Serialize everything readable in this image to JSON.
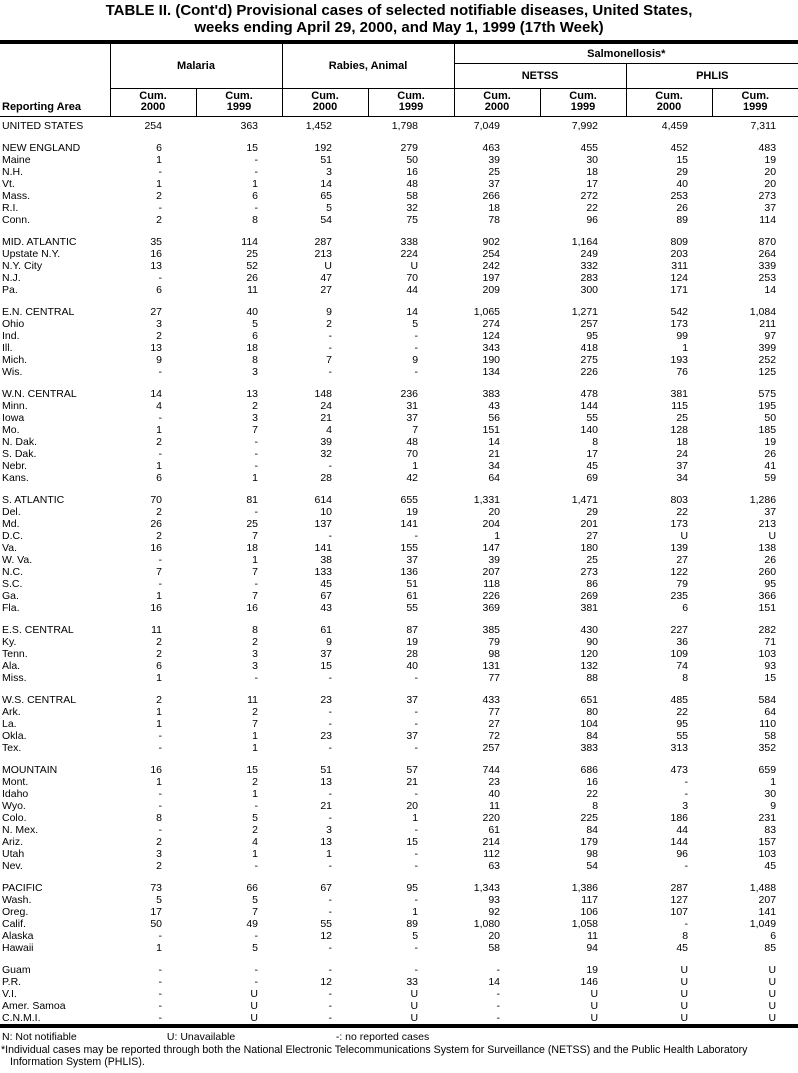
{
  "title": {
    "line1": "TABLE II. (Cont'd) Provisional cases of selected notifiable diseases, United States,",
    "line2": "weeks ending April 29, 2000, and May 1, 1999 (17th Week)"
  },
  "header": {
    "reporting_area_label": "Reporting Area",
    "group_malaria": "Malaria",
    "group_rabies": "Rabies, Animal",
    "group_salmonellosis": "Salmonellosis*",
    "subgroup_netss": "NETSS",
    "subgroup_phlis": "PHLIS",
    "columns": [
      {
        "line1": "Cum.",
        "line2": "2000"
      },
      {
        "line1": "Cum.",
        "line2": "1999"
      },
      {
        "line1": "Cum.",
        "line2": "2000"
      },
      {
        "line1": "Cum.",
        "line2": "1999"
      },
      {
        "line1": "Cum.",
        "line2": "2000"
      },
      {
        "line1": "Cum.",
        "line2": "1999"
      },
      {
        "line1": "Cum.",
        "line2": "2000"
      },
      {
        "line1": "Cum.",
        "line2": "1999"
      }
    ]
  },
  "sections": [
    {
      "rows": [
        {
          "area": "UNITED STATES",
          "values": [
            "254",
            "363",
            "1,452",
            "1,798",
            "7,049",
            "7,992",
            "4,459",
            "7,311"
          ]
        }
      ]
    },
    {
      "rows": [
        {
          "area": "NEW ENGLAND",
          "values": [
            "6",
            "15",
            "192",
            "279",
            "463",
            "455",
            "452",
            "483"
          ]
        },
        {
          "area": "Maine",
          "values": [
            "1",
            "-",
            "51",
            "50",
            "39",
            "30",
            "15",
            "19"
          ]
        },
        {
          "area": "N.H.",
          "values": [
            "-",
            "-",
            "3",
            "16",
            "25",
            "18",
            "29",
            "20"
          ]
        },
        {
          "area": "Vt.",
          "values": [
            "1",
            "1",
            "14",
            "48",
            "37",
            "17",
            "40",
            "20"
          ]
        },
        {
          "area": "Mass.",
          "values": [
            "2",
            "6",
            "65",
            "58",
            "266",
            "272",
            "253",
            "273"
          ]
        },
        {
          "area": "R.I.",
          "values": [
            "-",
            "-",
            "5",
            "32",
            "18",
            "22",
            "26",
            "37"
          ]
        },
        {
          "area": "Conn.",
          "values": [
            "2",
            "8",
            "54",
            "75",
            "78",
            "96",
            "89",
            "114"
          ]
        }
      ]
    },
    {
      "rows": [
        {
          "area": "MID. ATLANTIC",
          "values": [
            "35",
            "114",
            "287",
            "338",
            "902",
            "1,164",
            "809",
            "870"
          ]
        },
        {
          "area": "Upstate N.Y.",
          "values": [
            "16",
            "25",
            "213",
            "224",
            "254",
            "249",
            "203",
            "264"
          ]
        },
        {
          "area": "N.Y. City",
          "values": [
            "13",
            "52",
            "U",
            "U",
            "242",
            "332",
            "311",
            "339"
          ]
        },
        {
          "area": "N.J.",
          "values": [
            "-",
            "26",
            "47",
            "70",
            "197",
            "283",
            "124",
            "253"
          ]
        },
        {
          "area": "Pa.",
          "values": [
            "6",
            "11",
            "27",
            "44",
            "209",
            "300",
            "171",
            "14"
          ]
        }
      ]
    },
    {
      "rows": [
        {
          "area": "E.N. CENTRAL",
          "values": [
            "27",
            "40",
            "9",
            "14",
            "1,065",
            "1,271",
            "542",
            "1,084"
          ]
        },
        {
          "area": "Ohio",
          "values": [
            "3",
            "5",
            "2",
            "5",
            "274",
            "257",
            "173",
            "211"
          ]
        },
        {
          "area": "Ind.",
          "values": [
            "2",
            "6",
            "-",
            "-",
            "124",
            "95",
            "99",
            "97"
          ]
        },
        {
          "area": "Ill.",
          "values": [
            "13",
            "18",
            "-",
            "-",
            "343",
            "418",
            "1",
            "399"
          ]
        },
        {
          "area": "Mich.",
          "values": [
            "9",
            "8",
            "7",
            "9",
            "190",
            "275",
            "193",
            "252"
          ]
        },
        {
          "area": "Wis.",
          "values": [
            "-",
            "3",
            "-",
            "-",
            "134",
            "226",
            "76",
            "125"
          ]
        }
      ]
    },
    {
      "rows": [
        {
          "area": "W.N. CENTRAL",
          "values": [
            "14",
            "13",
            "148",
            "236",
            "383",
            "478",
            "381",
            "575"
          ]
        },
        {
          "area": "Minn.",
          "values": [
            "4",
            "2",
            "24",
            "31",
            "43",
            "144",
            "115",
            "195"
          ]
        },
        {
          "area": "Iowa",
          "values": [
            "-",
            "3",
            "21",
            "37",
            "56",
            "55",
            "25",
            "50"
          ]
        },
        {
          "area": "Mo.",
          "values": [
            "1",
            "7",
            "4",
            "7",
            "151",
            "140",
            "128",
            "185"
          ]
        },
        {
          "area": "N. Dak.",
          "values": [
            "2",
            "-",
            "39",
            "48",
            "14",
            "8",
            "18",
            "19"
          ]
        },
        {
          "area": "S. Dak.",
          "values": [
            "-",
            "-",
            "32",
            "70",
            "21",
            "17",
            "24",
            "26"
          ]
        },
        {
          "area": "Nebr.",
          "values": [
            "1",
            "-",
            "-",
            "1",
            "34",
            "45",
            "37",
            "41"
          ]
        },
        {
          "area": "Kans.",
          "values": [
            "6",
            "1",
            "28",
            "42",
            "64",
            "69",
            "34",
            "59"
          ]
        }
      ]
    },
    {
      "rows": [
        {
          "area": "S. ATLANTIC",
          "values": [
            "70",
            "81",
            "614",
            "655",
            "1,331",
            "1,471",
            "803",
            "1,286"
          ]
        },
        {
          "area": "Del.",
          "values": [
            "2",
            "-",
            "10",
            "19",
            "20",
            "29",
            "22",
            "37"
          ]
        },
        {
          "area": "Md.",
          "values": [
            "26",
            "25",
            "137",
            "141",
            "204",
            "201",
            "173",
            "213"
          ]
        },
        {
          "area": "D.C.",
          "values": [
            "2",
            "7",
            "-",
            "-",
            "1",
            "27",
            "U",
            "U"
          ]
        },
        {
          "area": "Va.",
          "values": [
            "16",
            "18",
            "141",
            "155",
            "147",
            "180",
            "139",
            "138"
          ]
        },
        {
          "area": "W. Va.",
          "values": [
            "-",
            "1",
            "38",
            "37",
            "39",
            "25",
            "27",
            "26"
          ]
        },
        {
          "area": "N.C.",
          "values": [
            "7",
            "7",
            "133",
            "136",
            "207",
            "273",
            "122",
            "260"
          ]
        },
        {
          "area": "S.C.",
          "values": [
            "-",
            "-",
            "45",
            "51",
            "118",
            "86",
            "79",
            "95"
          ]
        },
        {
          "area": "Ga.",
          "values": [
            "1",
            "7",
            "67",
            "61",
            "226",
            "269",
            "235",
            "366"
          ]
        },
        {
          "area": "Fla.",
          "values": [
            "16",
            "16",
            "43",
            "55",
            "369",
            "381",
            "6",
            "151"
          ]
        }
      ]
    },
    {
      "rows": [
        {
          "area": "E.S. CENTRAL",
          "values": [
            "11",
            "8",
            "61",
            "87",
            "385",
            "430",
            "227",
            "282"
          ]
        },
        {
          "area": "Ky.",
          "values": [
            "2",
            "2",
            "9",
            "19",
            "79",
            "90",
            "36",
            "71"
          ]
        },
        {
          "area": "Tenn.",
          "values": [
            "2",
            "3",
            "37",
            "28",
            "98",
            "120",
            "109",
            "103"
          ]
        },
        {
          "area": "Ala.",
          "values": [
            "6",
            "3",
            "15",
            "40",
            "131",
            "132",
            "74",
            "93"
          ]
        },
        {
          "area": "Miss.",
          "values": [
            "1",
            "-",
            "-",
            "-",
            "77",
            "88",
            "8",
            "15"
          ]
        }
      ]
    },
    {
      "rows": [
        {
          "area": "W.S. CENTRAL",
          "values": [
            "2",
            "11",
            "23",
            "37",
            "433",
            "651",
            "485",
            "584"
          ]
        },
        {
          "area": "Ark.",
          "values": [
            "1",
            "2",
            "-",
            "-",
            "77",
            "80",
            "22",
            "64"
          ]
        },
        {
          "area": "La.",
          "values": [
            "1",
            "7",
            "-",
            "-",
            "27",
            "104",
            "95",
            "110"
          ]
        },
        {
          "area": "Okla.",
          "values": [
            "-",
            "1",
            "23",
            "37",
            "72",
            "84",
            "55",
            "58"
          ]
        },
        {
          "area": "Tex.",
          "values": [
            "-",
            "1",
            "-",
            "-",
            "257",
            "383",
            "313",
            "352"
          ]
        }
      ]
    },
    {
      "rows": [
        {
          "area": "MOUNTAIN",
          "values": [
            "16",
            "15",
            "51",
            "57",
            "744",
            "686",
            "473",
            "659"
          ]
        },
        {
          "area": "Mont.",
          "values": [
            "1",
            "2",
            "13",
            "21",
            "23",
            "16",
            "-",
            "1"
          ]
        },
        {
          "area": "Idaho",
          "values": [
            "-",
            "1",
            "-",
            "-",
            "40",
            "22",
            "-",
            "30"
          ]
        },
        {
          "area": "Wyo.",
          "values": [
            "-",
            "-",
            "21",
            "20",
            "11",
            "8",
            "3",
            "9"
          ]
        },
        {
          "area": "Colo.",
          "values": [
            "8",
            "5",
            "-",
            "1",
            "220",
            "225",
            "186",
            "231"
          ]
        },
        {
          "area": "N. Mex.",
          "values": [
            "-",
            "2",
            "3",
            "-",
            "61",
            "84",
            "44",
            "83"
          ]
        },
        {
          "area": "Ariz.",
          "values": [
            "2",
            "4",
            "13",
            "15",
            "214",
            "179",
            "144",
            "157"
          ]
        },
        {
          "area": "Utah",
          "values": [
            "3",
            "1",
            "1",
            "-",
            "112",
            "98",
            "96",
            "103"
          ]
        },
        {
          "area": "Nev.",
          "values": [
            "2",
            "-",
            "-",
            "-",
            "63",
            "54",
            "-",
            "45"
          ]
        }
      ]
    },
    {
      "rows": [
        {
          "area": "PACIFIC",
          "values": [
            "73",
            "66",
            "67",
            "95",
            "1,343",
            "1,386",
            "287",
            "1,488"
          ]
        },
        {
          "area": "Wash.",
          "values": [
            "5",
            "5",
            "-",
            "-",
            "93",
            "117",
            "127",
            "207"
          ]
        },
        {
          "area": "Oreg.",
          "values": [
            "17",
            "7",
            "-",
            "1",
            "92",
            "106",
            "107",
            "141"
          ]
        },
        {
          "area": "Calif.",
          "values": [
            "50",
            "49",
            "55",
            "89",
            "1,080",
            "1,058",
            "-",
            "1,049"
          ]
        },
        {
          "area": "Alaska",
          "values": [
            "-",
            "-",
            "12",
            "5",
            "20",
            "11",
            "8",
            "6"
          ]
        },
        {
          "area": "Hawaii",
          "values": [
            "1",
            "5",
            "-",
            "-",
            "58",
            "94",
            "45",
            "85"
          ]
        }
      ]
    },
    {
      "rows": [
        {
          "area": "Guam",
          "values": [
            "-",
            "-",
            "-",
            "-",
            "-",
            "19",
            "U",
            "U"
          ]
        },
        {
          "area": "P.R.",
          "values": [
            "-",
            "-",
            "12",
            "33",
            "14",
            "146",
            "U",
            "U"
          ]
        },
        {
          "area": "V.I.",
          "values": [
            "-",
            "U",
            "-",
            "U",
            "-",
            "U",
            "U",
            "U"
          ]
        },
        {
          "area": "Amer. Samoa",
          "values": [
            "-",
            "U",
            "-",
            "U",
            "-",
            "U",
            "U",
            "U"
          ]
        },
        {
          "area": "C.N.M.I.",
          "values": [
            "-",
            "U",
            "-",
            "U",
            "-",
            "U",
            "U",
            "U"
          ]
        }
      ]
    }
  ],
  "footer": {
    "legend_n": "N: Not notifiable",
    "legend_u": "U: Unavailable",
    "legend_dash": "-: no reported cases",
    "footnote": "*Individual cases may be reported through both the National Electronic Telecommunications System for Surveillance (NETSS) and the Public Health Laboratory Information System (PHLIS)."
  }
}
